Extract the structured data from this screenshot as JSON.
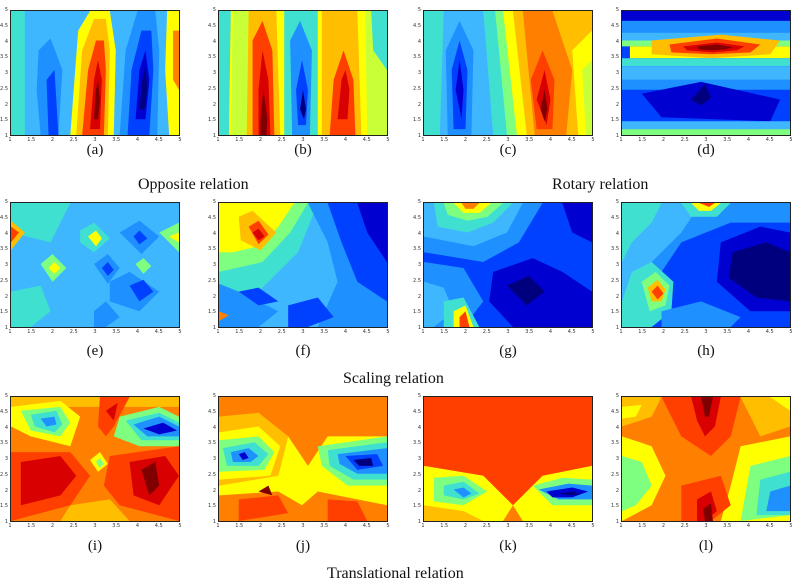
{
  "figure": {
    "tick_labels_x": [
      "1",
      "1.5",
      "2",
      "2.5",
      "3",
      "3.5",
      "4",
      "4.5",
      "5"
    ],
    "tick_labels_y": [
      "5",
      "4.5",
      "4",
      "3.5",
      "3",
      "2.5",
      "2",
      "1.5",
      "1"
    ],
    "panels": [
      {
        "label": "(a)"
      },
      {
        "label": "(b)"
      },
      {
        "label": "(c)"
      },
      {
        "label": "(d)"
      },
      {
        "label": "(e)"
      },
      {
        "label": "(f)"
      },
      {
        "label": "(g)"
      },
      {
        "label": "(h)"
      },
      {
        "label": "(i)"
      },
      {
        "label": "(j)"
      },
      {
        "label": "(k)"
      },
      {
        "label": "(l)"
      }
    ],
    "relations": {
      "opposite": "Opposite relation",
      "rotary": "Rotary relation",
      "scaling": "Scaling relation",
      "translational": "Translational relation"
    },
    "colormap": [
      "#00007f",
      "#0000d0",
      "#0040ff",
      "#1e90ff",
      "#3fb7ff",
      "#40e0d0",
      "#7fff7f",
      "#c8ff37",
      "#ffff00",
      "#ffbf00",
      "#ff7f00",
      "#ff3f00",
      "#d80000",
      "#800000"
    ]
  }
}
